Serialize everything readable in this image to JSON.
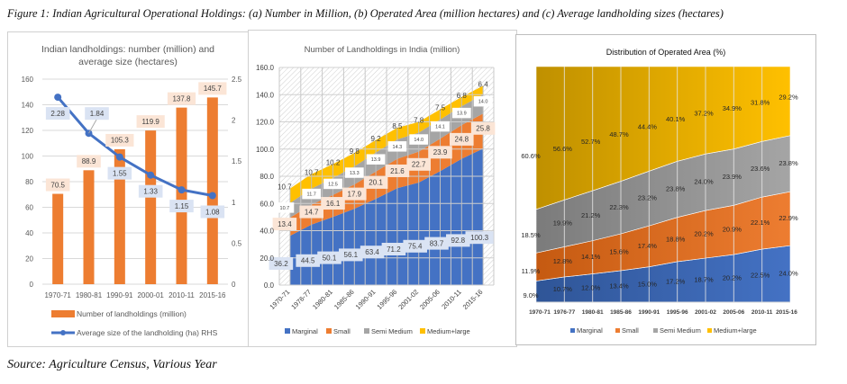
{
  "figure_caption": "Figure 1: Indian Agricultural Operational Holdings: (a) Number in Million, (b) Operated Area (million hectares) and (c) Average landholding sizes (hectares)",
  "source": "Source: Agriculture Census, Various Year",
  "colors": {
    "orange": "#ED7D31",
    "blue": "#4472C4",
    "gray": "#A5A5A5",
    "gold": "#FFC000",
    "orange_label_bg": "#FBE5D6",
    "blue_label_bg": "#DAE3F3"
  },
  "chart_data": [
    {
      "type": "bar",
      "title_line1": "Indian landholdings: number (million) and",
      "title_line2": "average size (hectares)",
      "categories": [
        "1970-71",
        "1980-81",
        "1990-91",
        "2000-01",
        "2010-11",
        "2015-16"
      ],
      "series": [
        {
          "name": "Number of landholdings (million)",
          "type": "bar",
          "axis": "left",
          "values": [
            70.5,
            88.9,
            105.3,
            119.9,
            137.8,
            145.7
          ],
          "labels": [
            "70.5",
            "88.9",
            "105.3",
            "119.9",
            "137.8",
            "145.7"
          ]
        },
        {
          "name": "Average size of the landholding (ha) RHS",
          "type": "line",
          "axis": "right",
          "values": [
            2.28,
            1.84,
            1.55,
            1.33,
            1.15,
            1.08
          ],
          "labels": [
            "2.28",
            "1.84",
            "1.55",
            "1.33",
            "1.15",
            "1.08"
          ]
        }
      ],
      "ylim_left": [
        0,
        160
      ],
      "yticks_left": [
        "0",
        "20",
        "40",
        "60",
        "80",
        "100",
        "120",
        "140",
        "160"
      ],
      "ylim_right": [
        0,
        2.5
      ],
      "yticks_right": [
        "0",
        "0.5",
        "1",
        "1.5",
        "2",
        "2.5"
      ],
      "grid": true,
      "legend_position": "bottom"
    },
    {
      "type": "area",
      "stacked": true,
      "title": "Number of Landholdings in India (million)",
      "categories": [
        "1970-71",
        "1976-77",
        "1980-81",
        "1985-86",
        "1990-91",
        "1995-96",
        "2001-02",
        "2005-06",
        "2010-11",
        "2015-16"
      ],
      "series": [
        {
          "name": "Marginal",
          "values": [
            36.2,
            44.5,
            50.1,
            56.1,
            63.4,
            71.2,
            75.4,
            83.7,
            92.8,
            100.3
          ],
          "labels": [
            "36.2",
            "44.5",
            "50.1",
            "56.1",
            "63.4",
            "71.2",
            "75.4",
            "83.7",
            "92.8",
            "100.3"
          ]
        },
        {
          "name": "Small",
          "values": [
            13.4,
            14.7,
            16.1,
            17.9,
            20.1,
            21.6,
            22.7,
            23.9,
            24.8,
            25.8
          ],
          "labels": [
            "13.4",
            "14.7",
            "16.1",
            "17.9",
            "20.1",
            "21.6",
            "22.7",
            "23.9",
            "24.8",
            "25.8"
          ]
        },
        {
          "name": "Semi Medium",
          "values": [
            10.7,
            11.7,
            12.5,
            13.3,
            13.9,
            14.3,
            14.0,
            14.1,
            13.9,
            14.0
          ],
          "labels": [
            "10.7",
            "11.7",
            "12.5",
            "13.3",
            "13.9",
            "14.3",
            "14.0",
            "14.1",
            "13.9",
            "14.0"
          ]
        },
        {
          "name": "Medium+large",
          "values": [
            10.7,
            10.7,
            10.2,
            9.8,
            9.2,
            8.5,
            7.8,
            7.5,
            6.8,
            6.4
          ],
          "labels": [
            "10.7",
            "10.7",
            "10.2",
            "9.8",
            "9.2",
            "8.5",
            "7.8",
            "7.5",
            "6.8",
            "6.4"
          ]
        }
      ],
      "ylim": [
        0,
        160
      ],
      "yticks": [
        "0.0",
        "20.0",
        "40.0",
        "60.0",
        "80.0",
        "100.0",
        "120.0",
        "140.0",
        "160.0"
      ],
      "grid": true,
      "legend_position": "bottom"
    },
    {
      "type": "area",
      "stacked": true,
      "percent": true,
      "title": "Distribution of Operated Area (%)",
      "categories": [
        "1970-71",
        "1976-77",
        "1980-81",
        "1985-86",
        "1990-91",
        "1995-96",
        "2001-02",
        "2005-06",
        "2010-11",
        "2015-16"
      ],
      "series": [
        {
          "name": "Marginal",
          "values": [
            9.0,
            10.7,
            12.0,
            13.4,
            15.0,
            17.2,
            18.7,
            20.2,
            22.5,
            24.0
          ],
          "labels": [
            "9.0%",
            "10.7%",
            "12.0%",
            "13.4%",
            "15.0%",
            "17.2%",
            "18.7%",
            "20.2%",
            "22.5%",
            "24.0%"
          ]
        },
        {
          "name": "Small",
          "values": [
            11.9,
            12.8,
            14.1,
            15.6,
            17.4,
            18.8,
            20.2,
            20.9,
            22.1,
            22.9
          ],
          "labels": [
            "11.9%",
            "12.8%",
            "14.1%",
            "15.6%",
            "17.4%",
            "18.8%",
            "20.2%",
            "20.9%",
            "22.1%",
            "22.9%"
          ]
        },
        {
          "name": "Semi Medium",
          "values": [
            18.5,
            19.9,
            21.2,
            22.3,
            23.2,
            23.8,
            24.0,
            23.9,
            23.6,
            23.8
          ],
          "labels": [
            "18.5%",
            "19.9%",
            "21.2%",
            "22.3%",
            "23.2%",
            "23.8%",
            "24.0%",
            "23.9%",
            "23.6%",
            "23.8%"
          ]
        },
        {
          "name": "Medium+large",
          "values": [
            60.6,
            56.6,
            52.7,
            48.7,
            44.4,
            40.1,
            37.2,
            34.9,
            31.8,
            29.2
          ],
          "labels": [
            "60.6%",
            "56.6%",
            "52.7%",
            "48.7%",
            "44.4%",
            "40.1%",
            "37.2%",
            "34.9%",
            "31.8%",
            "29.2%"
          ]
        }
      ],
      "ylim": [
        0,
        100
      ],
      "grid": false,
      "legend_position": "bottom"
    }
  ]
}
